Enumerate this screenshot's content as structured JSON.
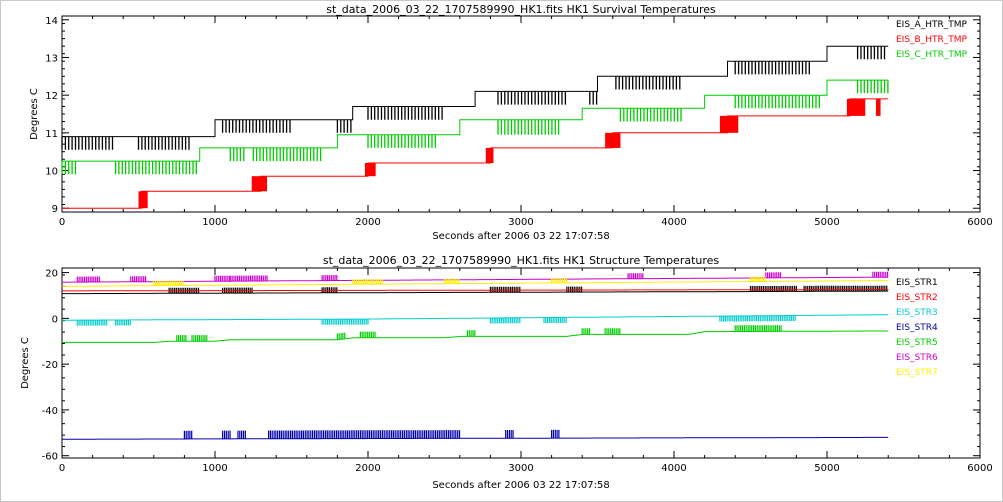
{
  "chart_data": [
    {
      "type": "line",
      "title": "st_data_2006_03_22_1707589990_HK1.fits HK1 Survival Temperatures",
      "xlabel": "Seconds after 2006 03 22 17:07:58",
      "ylabel": "Degrees C",
      "xlim": [
        0,
        6000
      ],
      "ylim": [
        8.9,
        14.1
      ],
      "xticks": [
        0,
        1000,
        2000,
        3000,
        4000,
        5000,
        6000
      ],
      "yticks": [
        9,
        10,
        11,
        12,
        13,
        14
      ],
      "legend_position": "top-right",
      "series": [
        {
          "name": "EIS_A_HTR_TMP",
          "color": "#000000",
          "base": [
            [
              0,
              10.9
            ],
            [
              1050,
              11.35
            ],
            [
              2000,
              11.7
            ],
            [
              2800,
              12.1
            ],
            [
              3600,
              12.5
            ],
            [
              4350,
              12.85
            ],
            [
              5000,
              13.3
            ],
            [
              5400,
              13.3
            ]
          ],
          "toggle_high": [
            [
              0,
              10.9
            ],
            [
              1000,
              11.35
            ],
            [
              1900,
              11.7
            ],
            [
              2700,
              12.1
            ],
            [
              3500,
              12.5
            ],
            [
              4350,
              12.9
            ],
            [
              5000,
              13.3
            ],
            [
              5400,
              13.3
            ]
          ],
          "toggle_low": [
            [
              0,
              10.55
            ],
            [
              1000,
              11.0
            ],
            [
              1900,
              11.35
            ],
            [
              2700,
              11.75
            ],
            [
              3500,
              12.15
            ],
            [
              4350,
              12.55
            ],
            [
              5000,
              12.95
            ],
            [
              5400,
              12.95
            ]
          ],
          "toggle_ranges": [
            [
              0,
              330
            ],
            [
              500,
              850
            ],
            [
              1050,
              1500
            ],
            [
              1800,
              1900
            ],
            [
              2000,
              2500
            ],
            [
              2850,
              3300
            ],
            [
              3450,
              3500
            ],
            [
              3620,
              4050
            ],
            [
              4400,
              4900
            ],
            [
              5200,
              5380
            ]
          ]
        },
        {
          "name": "EIS_B_HTR_TMP",
          "color": "#ff0000",
          "base": [
            [
              0,
              9.0
            ],
            [
              520,
              9.0
            ],
            [
              520,
              9.45
            ],
            [
              1300,
              9.45
            ],
            [
              1300,
              9.85
            ],
            [
              2000,
              9.85
            ],
            [
              2000,
              10.2
            ],
            [
              2800,
              10.2
            ],
            [
              2800,
              10.6
            ],
            [
              3600,
              10.6
            ],
            [
              3600,
              11.0
            ],
            [
              4350,
              11.0
            ],
            [
              4350,
              11.45
            ],
            [
              5150,
              11.45
            ],
            [
              5150,
              11.9
            ],
            [
              5400,
              11.9
            ]
          ],
          "blocks": [
            [
              500,
              560,
              9.0,
              9.45
            ],
            [
              1240,
              1340,
              9.45,
              9.85
            ],
            [
              1980,
              2050,
              9.85,
              10.2
            ],
            [
              2770,
              2820,
              10.2,
              10.6
            ],
            [
              3550,
              3650,
              10.6,
              11.0
            ],
            [
              4300,
              4420,
              11.0,
              11.45
            ],
            [
              5130,
              5250,
              11.45,
              11.9
            ],
            [
              5320,
              5350,
              11.45,
              11.9
            ]
          ]
        },
        {
          "name": "EIS_C_HTR_TMP",
          "color": "#00cc00",
          "base": [
            [
              0,
              10.25
            ],
            [
              900,
              10.25
            ],
            [
              900,
              10.6
            ],
            [
              1800,
              10.6
            ],
            [
              1800,
              10.95
            ],
            [
              2600,
              10.95
            ],
            [
              2600,
              11.35
            ],
            [
              3400,
              11.35
            ],
            [
              3400,
              11.65
            ],
            [
              4200,
              11.65
            ],
            [
              4200,
              12.0
            ],
            [
              5000,
              12.0
            ],
            [
              5000,
              12.4
            ],
            [
              5400,
              12.4
            ]
          ],
          "toggle_high": [
            [
              0,
              10.25
            ],
            [
              900,
              10.6
            ],
            [
              1800,
              10.95
            ],
            [
              2600,
              11.35
            ],
            [
              3400,
              11.65
            ],
            [
              4200,
              12.0
            ],
            [
              5000,
              12.4
            ],
            [
              5400,
              12.4
            ]
          ],
          "toggle_low": [
            [
              0,
              9.9
            ],
            [
              900,
              10.25
            ],
            [
              1800,
              10.6
            ],
            [
              2600,
              10.95
            ],
            [
              3400,
              11.3
            ],
            [
              4200,
              11.65
            ],
            [
              5000,
              12.05
            ],
            [
              5400,
              12.05
            ]
          ],
          "toggle_ranges": [
            [
              0,
              100
            ],
            [
              350,
              880
            ],
            [
              1100,
              1200
            ],
            [
              1250,
              1700
            ],
            [
              2000,
              2450
            ],
            [
              2850,
              3250
            ],
            [
              3650,
              4050
            ],
            [
              4400,
              4950
            ],
            [
              5200,
              5400
            ]
          ]
        }
      ]
    },
    {
      "type": "line",
      "title": "st_data_2006_03_22_1707589990_HK1.fits HK1 Structure Temperatures",
      "xlabel": "Seconds after 2006 03 22 17:07:58",
      "ylabel": "Degrees C",
      "xlim": [
        0,
        6000
      ],
      "ylim": [
        -61,
        22
      ],
      "xticks": [
        0,
        1000,
        2000,
        3000,
        4000,
        5000,
        6000
      ],
      "yticks": [
        -60,
        -40,
        -20,
        0,
        20
      ],
      "legend_position": "right",
      "series": [
        {
          "name": "EIS_STR1",
          "color": "#000000",
          "values": [
            [
              0,
              10.8
            ],
            [
              5400,
              11.9
            ]
          ],
          "spike_dir": 1,
          "spike_size": 0.8,
          "spike_ranges": [
            [
              700,
              900
            ],
            [
              1050,
              1250
            ],
            [
              1700,
              1800
            ],
            [
              2800,
              3000
            ],
            [
              3300,
              3400
            ],
            [
              4500,
              4800
            ],
            [
              4850,
              5400
            ]
          ]
        },
        {
          "name": "EIS_STR2",
          "color": "#ff0000",
          "values": [
            [
              0,
              12.0
            ],
            [
              5400,
              12.6
            ]
          ],
          "spike_dir": 0,
          "spike_size": 0,
          "spike_ranges": []
        },
        {
          "name": "EIS_STR3",
          "color": "#00cccc",
          "values": [
            [
              0,
              -0.8
            ],
            [
              2000,
              -0.3
            ],
            [
              5400,
              1.6
            ]
          ],
          "spike_dir": -1,
          "spike_size": 0.8,
          "spike_ranges": [
            [
              100,
              300
            ],
            [
              350,
              450
            ],
            [
              1700,
              2000
            ],
            [
              2800,
              3000
            ],
            [
              3150,
              3300
            ],
            [
              4300,
              4800
            ]
          ]
        },
        {
          "name": "EIS_STR4",
          "color": "#0000aa",
          "values": [
            [
              0,
              -52.8
            ],
            [
              5400,
              -52.0
            ]
          ],
          "spike_dir": 1,
          "spike_size": 1.2,
          "spike_ranges": [
            [
              800,
              850
            ],
            [
              1050,
              1100
            ],
            [
              1150,
              1200
            ],
            [
              1350,
              2600
            ],
            [
              2900,
              2950
            ],
            [
              3200,
              3250
            ]
          ]
        },
        {
          "name": "EIS_STR5",
          "color": "#00cc00",
          "values": [
            [
              0,
              -10.5
            ],
            [
              600,
              -10.5
            ],
            [
              700,
              -10.0
            ],
            [
              1000,
              -10.0
            ],
            [
              1100,
              -9.3
            ],
            [
              1800,
              -9.3
            ],
            [
              1900,
              -8.5
            ],
            [
              2500,
              -8.5
            ],
            [
              2600,
              -7.9
            ],
            [
              3300,
              -7.9
            ],
            [
              3400,
              -7.0
            ],
            [
              4100,
              -7.0
            ],
            [
              4200,
              -5.8
            ],
            [
              5400,
              -5.5
            ]
          ],
          "spike_dir": 1,
          "spike_size": 0.9,
          "spike_ranges": [
            [
              750,
              820
            ],
            [
              850,
              950
            ],
            [
              1800,
              1850
            ],
            [
              1950,
              2050
            ],
            [
              2650,
              2700
            ],
            [
              3400,
              3450
            ],
            [
              3550,
              3650
            ],
            [
              4400,
              4700
            ]
          ]
        },
        {
          "name": "EIS_STR6",
          "color": "#cc00cc",
          "values": [
            [
              0,
              15.8
            ],
            [
              5400,
              18.0
            ]
          ],
          "spike_dir": 1,
          "spike_size": 0.8,
          "spike_ranges": [
            [
              100,
              250
            ],
            [
              450,
              550
            ],
            [
              1000,
              1100
            ],
            [
              1100,
              1350
            ],
            [
              1700,
              1800
            ],
            [
              3700,
              3800
            ],
            [
              4600,
              4700
            ],
            [
              5300,
              5400
            ]
          ]
        },
        {
          "name": "EIS_STR7",
          "color": "#ffee00",
          "values": [
            [
              0,
              14.0
            ],
            [
              5400,
              16.5
            ]
          ],
          "spike_dir": 1,
          "spike_size": 0.7,
          "spike_ranges": [
            [
              600,
              800
            ],
            [
              1900,
              2100
            ],
            [
              2500,
              2600
            ],
            [
              3200,
              3300
            ],
            [
              4500,
              4600
            ]
          ]
        }
      ]
    }
  ]
}
